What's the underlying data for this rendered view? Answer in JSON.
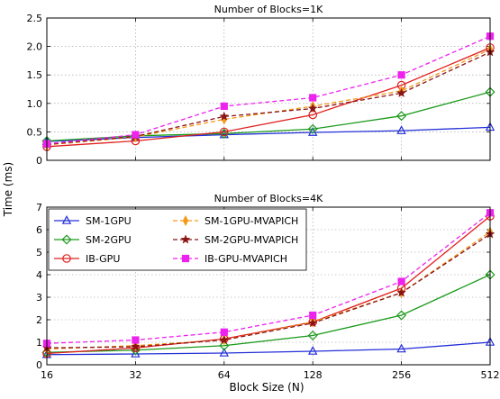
{
  "chart_data": [
    {
      "type": "line",
      "title": "Number of Blocks=1K",
      "xlabel": "Block Size (N)",
      "ylabel": "Time (ms)",
      "x_scale": "log2",
      "x": [
        16,
        32,
        64,
        128,
        256,
        512
      ],
      "x_tick_labels": [
        "16",
        "32",
        "64",
        "128",
        "256",
        "512"
      ],
      "ylim": [
        0,
        2.5
      ],
      "y_ticks": [
        0,
        0.5,
        1.0,
        1.5,
        2.0,
        2.5
      ],
      "y_tick_labels": [
        "0",
        "0.5",
        "1.0",
        "1.5",
        "2.0",
        "2.5"
      ],
      "grid": true,
      "series": [
        {
          "name": "SM-1GPU",
          "values": [
            0.33,
            0.4,
            0.45,
            0.49,
            0.52,
            0.58
          ]
        },
        {
          "name": "SM-2GPU",
          "values": [
            0.34,
            0.43,
            0.47,
            0.55,
            0.78,
            1.2
          ]
        },
        {
          "name": "IB-GPU",
          "values": [
            0.24,
            0.34,
            0.5,
            0.8,
            1.32,
            1.98
          ]
        },
        {
          "name": "SM-1GPU-MVAPICH",
          "values": [
            0.27,
            0.41,
            0.72,
            0.95,
            1.22,
            1.95
          ]
        },
        {
          "name": "SM-2GPU-MVAPICH",
          "values": [
            0.28,
            0.42,
            0.77,
            0.91,
            1.18,
            1.9
          ]
        },
        {
          "name": "IB-GPU-MVAPICH",
          "values": [
            0.29,
            0.45,
            0.95,
            1.1,
            1.5,
            2.18
          ]
        }
      ]
    },
    {
      "type": "line",
      "title": "Number of Blocks=4K",
      "xlabel": "Block Size (N)",
      "ylabel": "Time (ms)",
      "x_scale": "log2",
      "x": [
        16,
        32,
        64,
        128,
        256,
        512
      ],
      "x_tick_labels": [
        "16",
        "32",
        "64",
        "128",
        "256",
        "512"
      ],
      "ylim": [
        0,
        7
      ],
      "y_ticks": [
        0,
        1,
        2,
        3,
        4,
        5,
        6,
        7
      ],
      "y_tick_labels": [
        "0",
        "1",
        "2",
        "3",
        "4",
        "5",
        "6",
        "7"
      ],
      "grid": true,
      "legend_location": "upper-left",
      "series": [
        {
          "name": "SM-1GPU",
          "values": [
            0.45,
            0.48,
            0.52,
            0.6,
            0.7,
            1.0
          ]
        },
        {
          "name": "SM-2GPU",
          "values": [
            0.55,
            0.65,
            0.85,
            1.3,
            2.2,
            4.0
          ]
        },
        {
          "name": "IB-GPU",
          "values": [
            0.5,
            0.75,
            1.15,
            1.9,
            3.4,
            6.6
          ]
        },
        {
          "name": "SM-1GPU-MVAPICH",
          "values": [
            0.7,
            0.85,
            1.1,
            1.9,
            3.2,
            5.9
          ]
        },
        {
          "name": "SM-2GPU-MVAPICH",
          "values": [
            0.75,
            0.8,
            1.1,
            1.85,
            3.2,
            5.8
          ]
        },
        {
          "name": "IB-GPU-MVAPICH",
          "values": [
            0.95,
            1.1,
            1.45,
            2.2,
            3.7,
            6.75
          ]
        }
      ]
    }
  ],
  "styles": {
    "SM-1GPU": {
      "color": "#2430d8",
      "marker": "triangle",
      "dash": "solid"
    },
    "SM-2GPU": {
      "color": "#1a9a1a",
      "marker": "diamond",
      "dash": "solid"
    },
    "IB-GPU": {
      "color": "#e02020",
      "marker": "circle",
      "dash": "solid"
    },
    "SM-1GPU-MVAPICH": {
      "color": "#f39a1a",
      "marker": "thin-diamond",
      "dash": "dashed"
    },
    "SM-2GPU-MVAPICH": {
      "color": "#8a1414",
      "marker": "star",
      "dash": "dashed"
    },
    "IB-GPU-MVAPICH": {
      "color": "#ee22ee",
      "marker": "square",
      "dash": "dashed"
    }
  },
  "legend": {
    "entries": [
      "SM-1GPU",
      "SM-1GPU-MVAPICH",
      "SM-2GPU",
      "SM-2GPU-MVAPICH",
      "IB-GPU",
      "IB-GPU-MVAPICH"
    ]
  }
}
